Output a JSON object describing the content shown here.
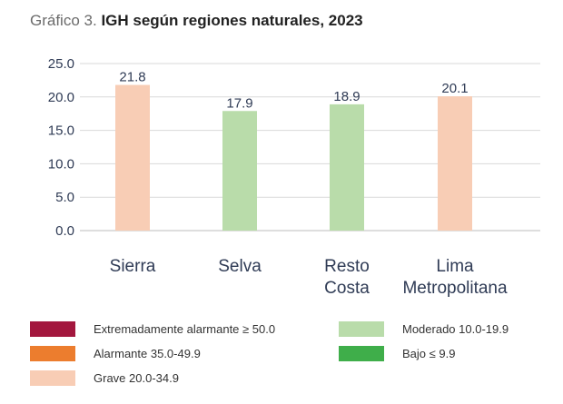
{
  "header": {
    "prefix": "Gráfico 3.",
    "title": "IGH según regiones naturales, 2023"
  },
  "chart_data": {
    "type": "bar",
    "title": "IGH según regiones naturales, 2023",
    "categories": [
      [
        "Sierra"
      ],
      [
        "Selva"
      ],
      [
        "Resto",
        "Costa"
      ],
      [
        "Lima",
        "Metropolitana"
      ]
    ],
    "values": [
      21.8,
      17.9,
      18.9,
      20.1
    ],
    "value_labels": [
      "21.8",
      "17.9",
      "18.9",
      "20.1"
    ],
    "bar_colors": [
      "#f8cdb5",
      "#b9dcaa",
      "#b9dcaa",
      "#f8cdb5"
    ],
    "yticks": [
      "0.0",
      "5.0",
      "10.0",
      "15.0",
      "20.0",
      "25.0"
    ],
    "ylim": [
      0,
      25
    ],
    "grid": true,
    "legend_placement": "bottom"
  },
  "legend": {
    "items": [
      {
        "label": "Extremadamente alarmante ≥ 50.0",
        "color": "#a3173e"
      },
      {
        "label": "Alarmante 35.0-49.9",
        "color": "#ec7d2e"
      },
      {
        "label": "Grave 20.0-34.9",
        "color": "#f8cdb5"
      },
      {
        "label": "Moderado 10.0-19.9",
        "color": "#b9dcaa"
      },
      {
        "label": "Bajo ≤ 9.9",
        "color": "#3fae4a"
      }
    ]
  }
}
